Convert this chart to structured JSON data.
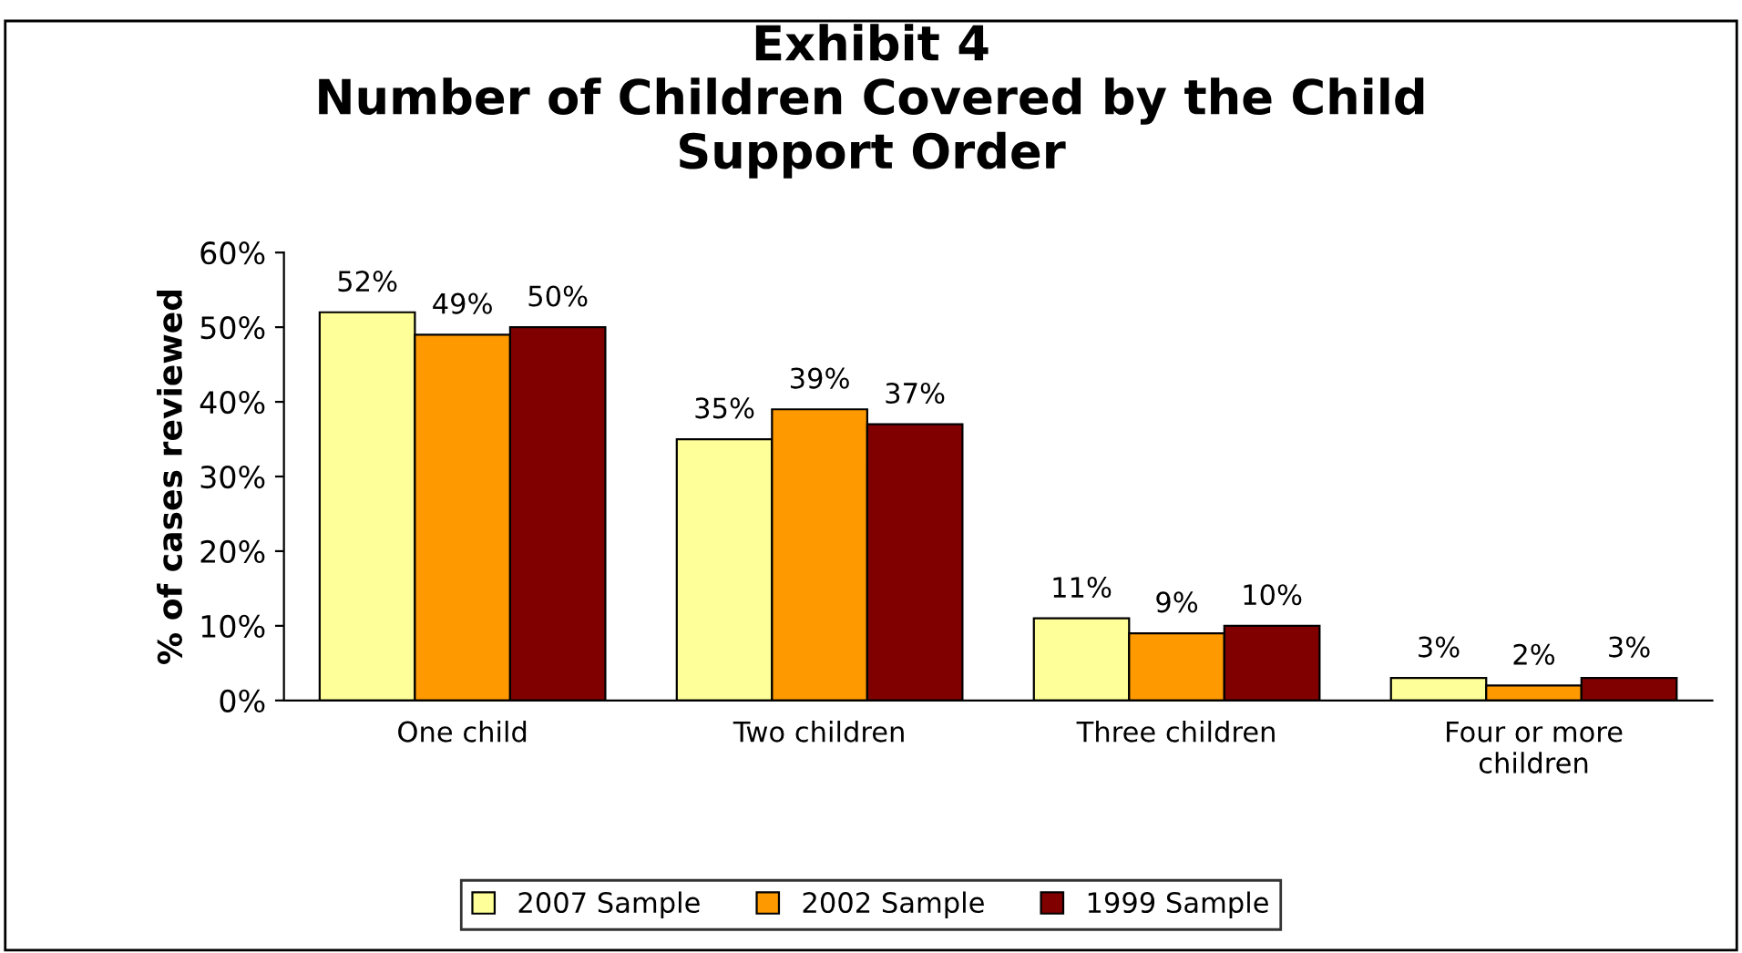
{
  "chart_data": {
    "type": "bar",
    "title": "Exhibit 4\nNumber of Children Covered by the Child\nSupport Order",
    "ylabel": "% of cases reviewed",
    "categories": [
      "One child",
      "Two children",
      "Three children",
      "Four or more\nchildren"
    ],
    "series": [
      {
        "name": "2007 Sample",
        "color": "#ffff99",
        "values": [
          52,
          35,
          11,
          3
        ],
        "value_labels": [
          "52%",
          "35%",
          "11%",
          "3%"
        ]
      },
      {
        "name": "2002 Sample",
        "color": "#ff9900",
        "values": [
          49,
          39,
          9,
          2
        ],
        "value_labels": [
          "49%",
          "39%",
          "9%",
          "2%"
        ]
      },
      {
        "name": "1999 Sample",
        "color": "#800000",
        "values": [
          50,
          37,
          10,
          3
        ],
        "value_labels": [
          "50%",
          "37%",
          "10%",
          "3%"
        ]
      }
    ],
    "ylim": [
      0,
      60
    ],
    "yticks": [
      {
        "value": 0,
        "label": "0%"
      },
      {
        "value": 10,
        "label": "10%"
      },
      {
        "value": 20,
        "label": "20%"
      },
      {
        "value": 30,
        "label": "30%"
      },
      {
        "value": 40,
        "label": "40%"
      },
      {
        "value": 50,
        "label": "50%"
      },
      {
        "value": 60,
        "label": "60%"
      }
    ],
    "grid": false,
    "legend": "bottom"
  }
}
